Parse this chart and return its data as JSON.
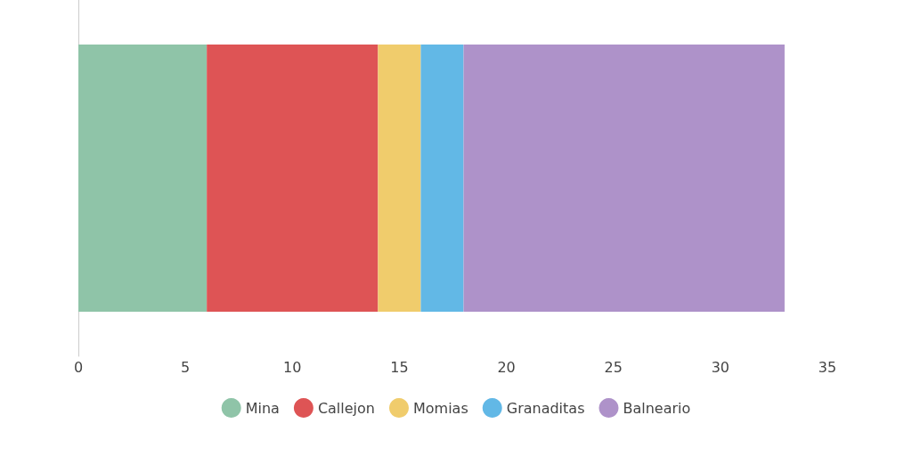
{
  "chart_data": {
    "type": "bar",
    "orientation": "horizontal",
    "stacked": true,
    "categories": [
      null
    ],
    "series": [
      {
        "name": "Mina",
        "color": "#8fc4a8",
        "values": [
          6
        ]
      },
      {
        "name": "Callejon",
        "color": "#de5455",
        "values": [
          8
        ]
      },
      {
        "name": "Momias",
        "color": "#f0cc6c",
        "values": [
          2
        ]
      },
      {
        "name": "Granaditas",
        "color": "#62b8e6",
        "values": [
          2
        ]
      },
      {
        "name": "Balneario",
        "color": "#ae92c9",
        "values": [
          15
        ]
      }
    ],
    "xlim": [
      0,
      35
    ],
    "xticks": [
      0,
      5,
      10,
      15,
      20,
      25,
      30,
      35
    ],
    "grid": false,
    "legend": "bottom"
  }
}
